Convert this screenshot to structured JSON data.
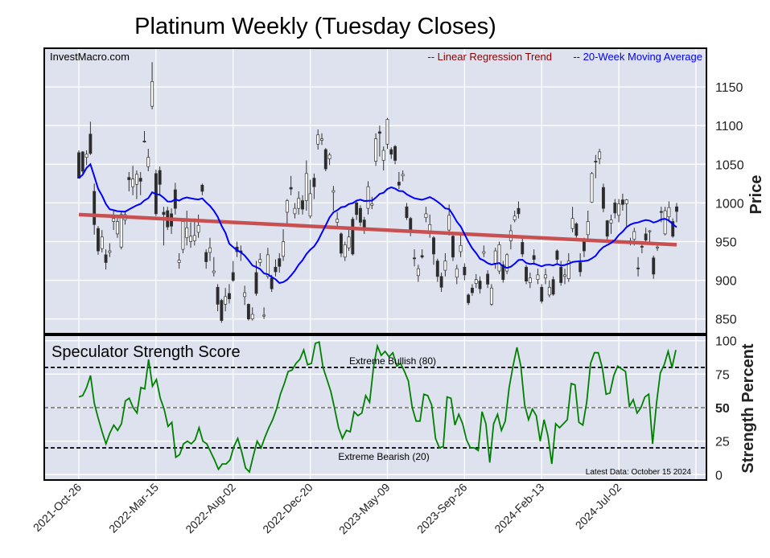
{
  "chart_data": [
    {
      "type": "candlestick",
      "title": "Platinum Weekly (Tuesday Closes)",
      "watermark": "InvestMacro.com",
      "ylabel": "Price",
      "ylim": [
        831,
        1200
      ],
      "yticks": [
        850,
        900,
        950,
        1000,
        1050,
        1100,
        1150
      ],
      "grid": true,
      "legend": {
        "placement": "top-right",
        "entries": [
          {
            "label": "-- Linear Regression Trend",
            "color": "#8b0000"
          },
          {
            "label": "-- 20-Week Moving Average",
            "color": "#0000ff"
          }
        ]
      },
      "ma_window": 20,
      "trend_start_end": [
        985,
        946
      ],
      "colors": {
        "trend": "#c85050",
        "ma": "#0000ff",
        "down": "#2b2b2b",
        "up": "#ffffff",
        "wick": "#333333",
        "bg": "#dde2ee"
      },
      "ohlc": [
        [
          1065,
          1068,
          1032,
          1032
        ],
        [
          1066,
          1067,
          1038,
          1041
        ],
        [
          1059,
          1068,
          1049,
          1063
        ],
        [
          1089,
          1105,
          1062,
          1064
        ],
        [
          1015,
          1025,
          959,
          972
        ],
        [
          967,
          970,
          933,
          938
        ],
        [
          941,
          965,
          936,
          956
        ],
        [
          933,
          940,
          914,
          923
        ],
        [
          936,
          948,
          930,
          938
        ],
        [
          976,
          990,
          965,
          980
        ],
        [
          960,
          982,
          955,
          976
        ],
        [
          943,
          990,
          940,
          985
        ],
        [
          978,
          990,
          972,
          985
        ],
        [
          1033,
          1040,
          1015,
          1030
        ],
        [
          1021,
          1048,
          1010,
          1031
        ],
        [
          1024,
          1042,
          1005,
          1037
        ],
        [
          1032,
          1040,
          1010,
          1028
        ],
        [
          1080,
          1093,
          1078,
          1079
        ],
        [
          1047,
          1070,
          1041,
          1059
        ],
        [
          1125,
          1182,
          1121,
          1157
        ],
        [
          1038,
          1043,
          983,
          986
        ],
        [
          1042,
          1047,
          1010,
          1024
        ],
        [
          988,
          995,
          945,
          985
        ],
        [
          990,
          995,
          965,
          969
        ],
        [
          986,
          993,
          960,
          970
        ],
        [
          1017,
          1026,
          985,
          993
        ],
        [
          923,
          935,
          915,
          926
        ],
        [
          940,
          980,
          935,
          976
        ],
        [
          955,
          990,
          945,
          968
        ],
        [
          950,
          975,
          942,
          957
        ],
        [
          951,
          980,
          945,
          958
        ],
        [
          962,
          985,
          955,
          971
        ],
        [
          1023,
          1025,
          1010,
          1015
        ],
        [
          936,
          940,
          915,
          924
        ],
        [
          936,
          955,
          925,
          942
        ],
        [
          910,
          930,
          905,
          912
        ],
        [
          891,
          895,
          860,
          869
        ],
        [
          874,
          876,
          845,
          848
        ],
        [
          869,
          890,
          860,
          879
        ],
        [
          883,
          895,
          870,
          876
        ],
        [
          910,
          925,
          898,
          900
        ],
        [
          943,
          950,
          930,
          937
        ],
        [
          938,
          945,
          925,
          936
        ],
        [
          879,
          893,
          868,
          884
        ],
        [
          869,
          870,
          848,
          850
        ],
        [
          850,
          865,
          848,
          856
        ],
        [
          910,
          925,
          880,
          883
        ],
        [
          923,
          935,
          918,
          927
        ],
        [
          854,
          865,
          850,
          855
        ],
        [
          905,
          942,
          902,
          933
        ],
        [
          903,
          907,
          885,
          889
        ],
        [
          917,
          927,
          905,
          911
        ],
        [
          928,
          935,
          910,
          918
        ],
        [
          931,
          966,
          925,
          950
        ],
        [
          988,
          1005,
          970,
          1003
        ],
        [
          1020,
          1035,
          1010,
          1018
        ],
        [
          986,
          1000,
          980,
          993
        ],
        [
          993,
          1015,
          985,
          1006
        ],
        [
          1003,
          1010,
          985,
          992
        ],
        [
          1003,
          1055,
          990,
          1038
        ],
        [
          983,
          1030,
          980,
          1012
        ],
        [
          1032,
          1038,
          1005,
          1021
        ],
        [
          1076,
          1095,
          1069,
          1088
        ],
        [
          1081,
          1090,
          1075,
          1083
        ],
        [
          1069,
          1071,
          1041,
          1044
        ],
        [
          1057,
          1065,
          1049,
          1062
        ],
        [
          1014,
          1022,
          990,
          1016
        ],
        [
          975,
          988,
          968,
          979
        ],
        [
          960,
          962,
          930,
          935
        ],
        [
          930,
          950,
          925,
          946
        ],
        [
          942,
          968,
          938,
          956
        ],
        [
          979,
          982,
          932,
          934
        ],
        [
          1000,
          1003,
          978,
          985
        ],
        [
          993,
          997,
          970,
          975
        ],
        [
          978,
          982,
          960,
          968
        ],
        [
          993,
          1028,
          985,
          1021
        ],
        [
          997,
          1008,
          992,
          999
        ],
        [
          1054,
          1090,
          1048,
          1083
        ],
        [
          1092,
          1100,
          1060,
          1090
        ],
        [
          1055,
          1073,
          1042,
          1068
        ],
        [
          1076,
          1110,
          1070,
          1108
        ],
        [
          1069,
          1072,
          1057,
          1063
        ],
        [
          1073,
          1075,
          1050,
          1055
        ],
        [
          1027,
          1040,
          1018,
          1023
        ],
        [
          1035,
          1042,
          1028,
          1037
        ],
        [
          995,
          1000,
          978,
          981
        ],
        [
          980,
          982,
          957,
          965
        ],
        [
          929,
          940,
          918,
          928
        ],
        [
          906,
          920,
          898,
          915
        ],
        [
          932,
          940,
          928,
          930
        ],
        [
          981,
          995,
          975,
          986
        ],
        [
          964,
          985,
          955,
          972
        ],
        [
          955,
          957,
          920,
          934
        ],
        [
          925,
          928,
          898,
          905
        ],
        [
          905,
          910,
          885,
          891
        ],
        [
          913,
          935,
          905,
          925
        ],
        [
          965,
          998,
          958,
          984
        ],
        [
          957,
          962,
          925,
          930
        ],
        [
          904,
          920,
          895,
          915
        ],
        [
          937,
          962,
          930,
          945
        ],
        [
          917,
          922,
          900,
          907
        ],
        [
          881,
          883,
          868,
          871
        ],
        [
          890,
          895,
          880,
          884
        ],
        [
          896,
          908,
          890,
          901
        ],
        [
          899,
          905,
          883,
          889
        ],
        [
          935,
          945,
          930,
          937
        ],
        [
          908,
          913,
          890,
          895
        ],
        [
          869,
          895,
          867,
          890
        ],
        [
          922,
          942,
          915,
          938
        ],
        [
          912,
          950,
          908,
          946
        ],
        [
          920,
          925,
          897,
          901
        ],
        [
          912,
          935,
          908,
          933
        ],
        [
          951,
          972,
          940,
          964
        ],
        [
          978,
          990,
          975,
          983
        ],
        [
          993,
          1002,
          980,
          986
        ],
        [
          949,
          955,
          930,
          934
        ],
        [
          917,
          920,
          895,
          899
        ],
        [
          897,
          910,
          890,
          903
        ],
        [
          932,
          940,
          920,
          927
        ],
        [
          901,
          915,
          895,
          907
        ],
        [
          891,
          895,
          870,
          873
        ],
        [
          903,
          915,
          895,
          907
        ],
        [
          881,
          900,
          878,
          891
        ],
        [
          901,
          905,
          880,
          882
        ],
        [
          938,
          940,
          920,
          927
        ],
        [
          917,
          925,
          893,
          897
        ],
        [
          905,
          915,
          895,
          907
        ],
        [
          902,
          935,
          898,
          925
        ],
        [
          967,
          995,
          962,
          980
        ],
        [
          973,
          975,
          955,
          958
        ],
        [
          923,
          935,
          905,
          911
        ],
        [
          953,
          955,
          930,
          938
        ],
        [
          959,
          990,
          950,
          976
        ],
        [
          1001,
          1040,
          1000,
          1038
        ],
        [
          1054,
          1062,
          1032,
          1053
        ],
        [
          1057,
          1070,
          1050,
          1066
        ],
        [
          1020,
          1025,
          988,
          993
        ],
        [
          977,
          978,
          952,
          957
        ],
        [
          974,
          985,
          960,
          978
        ],
        [
          1000,
          1005,
          980,
          987
        ],
        [
          984,
          1005,
          975,
          999
        ],
        [
          1004,
          1012,
          990,
          998
        ],
        [
          999,
          1005,
          970,
          1004
        ],
        [
          951,
          955,
          945,
          950
        ],
        [
          953,
          968,
          945,
          963
        ],
        [
          916,
          930,
          905,
          915
        ],
        [
          944,
          950,
          935,
          943
        ],
        [
          960,
          968,
          948,
          952
        ],
        [
          963,
          965,
          950,
          964
        ],
        [
          929,
          932,
          902,
          908
        ],
        [
          942,
          948,
          938,
          943
        ],
        [
          989,
          995,
          975,
          988
        ],
        [
          960,
          995,
          958,
          990
        ],
        [
          982,
          1002,
          975,
          994
        ],
        [
          976,
          980,
          955,
          957
        ],
        [
          995,
          1000,
          975,
          989
        ]
      ]
    },
    {
      "type": "line",
      "title": "Speculator Strength Score",
      "ylabel": "Strength Percent",
      "ylim": [
        -4,
        104
      ],
      "yticks": [
        0,
        25,
        50,
        75,
        100
      ],
      "grid": true,
      "color": "#008000",
      "reference_lines": [
        {
          "value": 80,
          "label": "Extreme Bullish (80)",
          "style": "dashed",
          "color": "#000000"
        },
        {
          "value": 50,
          "label": "",
          "style": "dashed",
          "color": "#808080"
        },
        {
          "value": 20,
          "label": "Extreme Bearish (20)",
          "style": "dashed",
          "color": "#000000"
        }
      ],
      "annotation": "Latest Data: October 15 2024",
      "values": [
        58,
        59,
        65,
        74,
        53,
        42,
        32,
        23,
        31,
        37,
        33,
        38,
        55,
        57,
        50,
        46,
        65,
        64,
        86,
        66,
        71,
        57,
        49,
        36,
        39,
        13,
        15,
        23,
        25,
        23,
        26,
        35,
        25,
        23,
        17,
        11,
        4,
        8,
        8,
        11,
        21,
        27,
        17,
        5,
        2,
        14,
        25,
        20,
        28,
        35,
        41,
        49,
        60,
        68,
        77,
        78,
        83,
        86,
        93,
        82,
        83,
        98,
        99,
        80,
        71,
        62,
        49,
        35,
        27,
        33,
        32,
        47,
        44,
        46,
        59,
        54,
        80,
        96,
        89,
        92,
        88,
        91,
        81,
        83,
        77,
        70,
        50,
        40,
        40,
        60,
        59,
        52,
        27,
        20,
        21,
        58,
        57,
        37,
        45,
        38,
        26,
        20,
        20,
        18,
        47,
        38,
        9,
        38,
        45,
        33,
        40,
        65,
        81,
        95,
        81,
        52,
        41,
        49,
        44,
        25,
        41,
        29,
        8,
        38,
        35,
        38,
        41,
        68,
        67,
        39,
        37,
        54,
        83,
        91,
        91,
        80,
        60,
        61,
        74,
        81,
        79,
        77,
        51,
        56,
        46,
        50,
        58,
        60,
        23,
        53,
        76,
        82,
        92,
        80,
        93
      ]
    }
  ],
  "x_axis": {
    "tick_labels": [
      "2021-Oct-26",
      "2022-Mar-15",
      "2022-Aug-02",
      "2022-Dec-20",
      "2023-May-09",
      "2023-Sep-26",
      "2024-Feb-13",
      "2024-Jul-02"
    ],
    "tick_week_index": [
      0,
      20,
      40,
      60,
      80,
      100,
      120,
      140
    ]
  }
}
